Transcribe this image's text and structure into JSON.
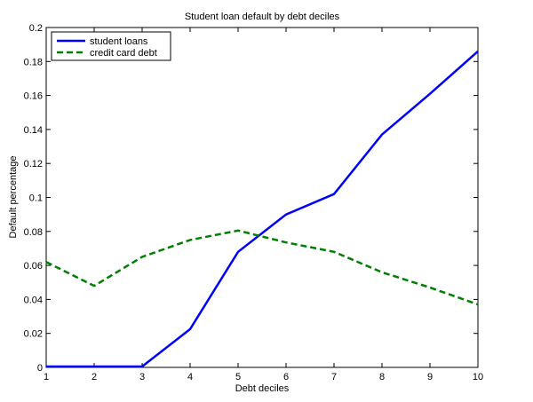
{
  "chart_data": {
    "type": "line",
    "title": "Student loan default by debt deciles",
    "xlabel": "Debt deciles",
    "ylabel": "Default percentage",
    "xlim": [
      1,
      10
    ],
    "ylim": [
      0,
      0.2
    ],
    "xticks": [
      1,
      2,
      3,
      4,
      5,
      6,
      7,
      8,
      9,
      10
    ],
    "yticks": [
      0,
      0.02,
      0.04,
      0.06,
      0.08,
      0.1,
      0.12,
      0.14,
      0.16,
      0.18,
      0.2
    ],
    "ytick_labels": [
      "0",
      "0.02",
      "0.04",
      "0.06",
      "0.08",
      "0.1",
      "0.12",
      "0.14",
      "0.16",
      "0.18",
      "0.2"
    ],
    "grid": false,
    "legend_position": "top-left",
    "x": [
      1,
      2,
      3,
      4,
      5,
      6,
      7,
      8,
      9,
      10
    ],
    "series": [
      {
        "name": "student loans",
        "color": "#0000ff",
        "style": "solid",
        "values": [
          0.0005,
          0.0005,
          0.0005,
          0.0225,
          0.068,
          0.09,
          0.102,
          0.137,
          0.161,
          0.186
        ]
      },
      {
        "name": "credit card debt",
        "color": "#008000",
        "style": "dashed",
        "values": [
          0.062,
          0.048,
          0.065,
          0.075,
          0.0805,
          0.0735,
          0.068,
          0.056,
          0.047,
          0.037
        ]
      }
    ]
  }
}
